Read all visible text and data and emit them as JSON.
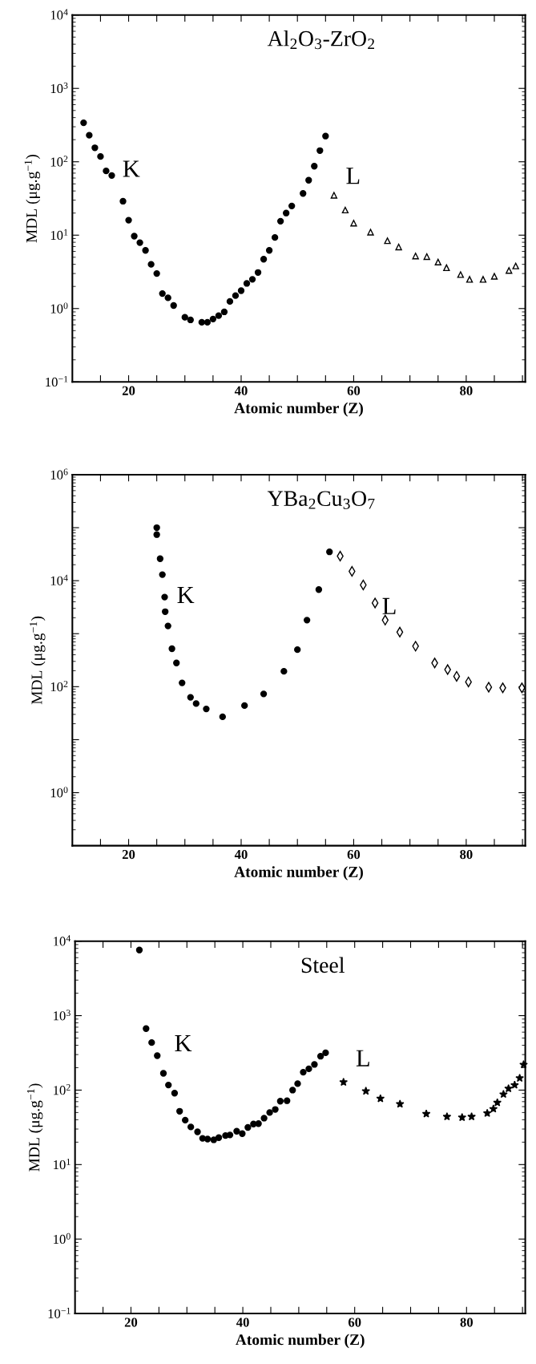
{
  "chart_data": [
    {
      "type": "scatter",
      "title": "Al$_{2}$O$_{3}$-ZrO$_{2}$",
      "xlabel": "Atomic number (Z)",
      "ylabel": "MDL (μg.g$^{−1}$)",
      "log": "y",
      "legend": false,
      "xlim": [
        10,
        90.5
      ],
      "xticks": [
        {
          "value": 15,
          "label": null
        },
        20,
        {
          "value": 25,
          "label": null
        },
        {
          "value": 30,
          "label": null
        },
        {
          "value": 35,
          "label": null
        },
        40,
        {
          "value": 45,
          "label": null
        },
        {
          "value": 50,
          "label": null
        },
        {
          "value": 55,
          "label": null
        },
        60,
        {
          "value": 65,
          "label": null
        },
        {
          "value": 70,
          "label": null
        },
        {
          "value": 75,
          "label": null
        },
        80,
        {
          "value": 85,
          "label": null
        },
        {
          "value": 90,
          "label": null
        }
      ],
      "ylim": [
        0.1,
        10000
      ],
      "yticks": [
        {
          "value": 0.1,
          "label": "10$^{−1}$"
        },
        {
          "value": 1,
          "label": "10$^{0}$"
        },
        {
          "value": 10,
          "label": "10$^{1}$"
        },
        {
          "value": 100,
          "label": "10$^{2}$"
        },
        {
          "value": 1000,
          "label": "10$^{3}$"
        },
        {
          "value": 10000,
          "label": "10$^{4}$"
        }
      ],
      "annotations": [
        "K",
        "L"
      ],
      "series": [
        {
          "color": "#000000",
          "marker": "circle",
          "x": [
            12,
            13,
            14,
            15,
            16,
            17,
            19,
            20,
            21,
            22,
            23,
            24,
            25,
            26,
            27,
            28,
            30,
            31,
            33,
            34,
            35,
            36,
            37,
            38,
            39,
            40,
            41,
            42,
            43,
            44,
            45,
            46,
            47,
            48,
            49,
            51,
            52,
            53,
            54,
            55
          ],
          "values": [
            340,
            230,
            155,
            118,
            75,
            65,
            29,
            16,
            9.7,
            7.9,
            6.2,
            4.0,
            3.0,
            1.6,
            1.4,
            1.1,
            0.76,
            0.7,
            0.65,
            0.65,
            0.72,
            0.8,
            0.9,
            1.25,
            1.5,
            1.75,
            2.2,
            2.5,
            3.1,
            4.7,
            6.2,
            9.3,
            15.5,
            20,
            25,
            37,
            56,
            87,
            142,
            224
          ]
        },
        {
          "color": "#000000",
          "marker": "triangle",
          "x": [
            56.5,
            58.5,
            60,
            63,
            66,
            68,
            71,
            73,
            75,
            76.5,
            79,
            80.6,
            83,
            85,
            87.6,
            88.8
          ],
          "values": [
            35,
            22,
            14.6,
            11,
            8.4,
            6.9,
            5.2,
            5.1,
            4.3,
            3.6,
            2.9,
            2.5,
            2.5,
            2.75,
            3.3,
            3.8
          ]
        }
      ]
    },
    {
      "type": "scatter",
      "title": "YBa$_{2}$Cu$_{3}$O$_{7}$",
      "xlabel": "Atomic number (Z)",
      "ylabel": "MDL (μg.g$^{−1}$)",
      "log": "y",
      "legend": false,
      "xlim": [
        10,
        90.5
      ],
      "xticks": [
        {
          "value": 15,
          "label": null
        },
        20,
        {
          "value": 25,
          "label": null
        },
        {
          "value": 30,
          "label": null
        },
        {
          "value": 35,
          "label": null
        },
        40,
        {
          "value": 45,
          "label": null
        },
        {
          "value": 50,
          "label": null
        },
        {
          "value": 55,
          "label": null
        },
        60,
        {
          "value": 65,
          "label": null
        },
        {
          "value": 70,
          "label": null
        },
        {
          "value": 75,
          "label": null
        },
        80,
        {
          "value": 85,
          "label": null
        },
        {
          "value": 90,
          "label": null
        }
      ],
      "ylim": [
        0.1,
        1000000
      ],
      "yticks": [
        {
          "value": 1,
          "label": "10$^{0}$"
        },
        {
          "value": 10,
          "label": null
        },
        {
          "value": 100,
          "label": "10$^{2}$"
        },
        {
          "value": 1000,
          "label": null
        },
        {
          "value": 10000,
          "label": "10$^{4}$"
        },
        {
          "value": 100000,
          "label": null
        },
        {
          "value": 1000000,
          "label": "10$^{6}$"
        }
      ],
      "annotations": [
        "K",
        "L"
      ],
      "series": [
        {
          "color": "#000000",
          "marker": "circle",
          "x": [
            25,
            25,
            25.6,
            26,
            26.4,
            26.5,
            27,
            27.7,
            28.5,
            29.5,
            31,
            32,
            33.8,
            36.7,
            40.6,
            44,
            47.6,
            50,
            51.7,
            53.8,
            55.7
          ],
          "values": [
            100000,
            74000,
            26000,
            13000,
            4900,
            2600,
            1400,
            520,
            280,
            118,
            63,
            48,
            38,
            27,
            44,
            73,
            195,
            500,
            1800,
            6800,
            35000
          ]
        },
        {
          "color": "#000000",
          "marker": "diamond",
          "x": [
            57.6,
            59.7,
            61.7,
            63.8,
            65.6,
            68.2,
            71,
            74.4,
            76.7,
            78.3,
            80.4,
            84,
            86.5,
            89.9
          ],
          "values": [
            29000,
            15000,
            8300,
            3800,
            1800,
            1070,
            580,
            280,
            210,
            157,
            123,
            98,
            95,
            95
          ]
        }
      ]
    },
    {
      "type": "scatter",
      "title": "Steel",
      "xlabel": "Atomic number (Z)",
      "ylabel": "MDL (μg.g$^{−1}$)",
      "log": "y",
      "legend": false,
      "xlim": [
        10,
        90.5
      ],
      "xticks": [
        {
          "value": 15,
          "label": null
        },
        20,
        {
          "value": 25,
          "label": null
        },
        {
          "value": 30,
          "label": null
        },
        {
          "value": 35,
          "label": null
        },
        40,
        {
          "value": 45,
          "label": null
        },
        {
          "value": 50,
          "label": null
        },
        {
          "value": 55,
          "label": null
        },
        60,
        {
          "value": 65,
          "label": null
        },
        {
          "value": 70,
          "label": null
        },
        {
          "value": 75,
          "label": null
        },
        80,
        {
          "value": 85,
          "label": null
        },
        {
          "value": 90,
          "label": null
        }
      ],
      "ylim": [
        0.1,
        10000
      ],
      "yticks": [
        {
          "value": 0.1,
          "label": "10$^{−1}$"
        },
        {
          "value": 1,
          "label": "10$^{0}$"
        },
        {
          "value": 10,
          "label": "10$^{1}$"
        },
        {
          "value": 100,
          "label": "10$^{2}$"
        },
        {
          "value": 1000,
          "label": "10$^{3}$"
        },
        {
          "value": 10000,
          "label": "10$^{4}$"
        }
      ],
      "annotations": [
        "K",
        "L"
      ],
      "series": [
        {
          "color": "#000000",
          "marker": "circle",
          "x": [
            21.5,
            22.7,
            23.7,
            24.7,
            25.8,
            26.7,
            27.8,
            28.7,
            29.7,
            30.7,
            31.9,
            32.8,
            33.7,
            34.8,
            35.7,
            36.9,
            37.7,
            38.9,
            39.9,
            40.9,
            41.9,
            42.8,
            43.8,
            44.8,
            45.8,
            46.7,
            47.9,
            48.9,
            49.8,
            50.8,
            51.8,
            52.8,
            53.9,
            54.8
          ],
          "values": [
            7600,
            670,
            435,
            290,
            168,
            117,
            91,
            52,
            39.5,
            32,
            27.5,
            22.5,
            22,
            21.5,
            23,
            24.5,
            25,
            28,
            26,
            31.5,
            35,
            35.5,
            42,
            50,
            55,
            71,
            72,
            100,
            122,
            174,
            193,
            221,
            285,
            317
          ]
        },
        {
          "color": "#000000",
          "marker": "star",
          "x": [
            58,
            62,
            64.6,
            68.1,
            72.8,
            76.5,
            79.2,
            80.9,
            83.7,
            84.8,
            85.5,
            86.6,
            87.5,
            88.6,
            89.5,
            90.2
          ],
          "values": [
            128,
            97,
            77,
            65,
            48,
            44,
            43,
            44,
            49,
            56,
            68,
            88,
            105,
            117,
            145,
            220
          ]
        }
      ]
    }
  ]
}
